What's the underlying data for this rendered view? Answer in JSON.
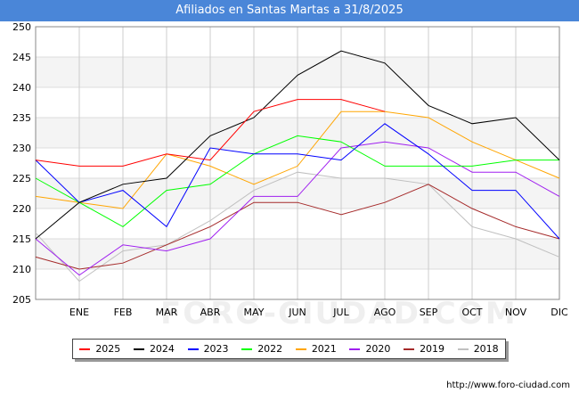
{
  "chart_data": {
    "type": "line",
    "title": "Afiliados en Santas Martas a 31/8/2025",
    "categories": [
      "",
      "ENE",
      "FEB",
      "MAR",
      "ABR",
      "MAY",
      "JUN",
      "JUL",
      "AGO",
      "SEP",
      "OCT",
      "NOV",
      "DIC"
    ],
    "yticks": [
      205,
      210,
      215,
      220,
      225,
      230,
      235,
      240,
      245,
      250
    ],
    "ylim": [
      205,
      250
    ],
    "xlabel": "",
    "ylabel": "",
    "grid": true,
    "legend_position": "bottom",
    "series": [
      {
        "name": "2025",
        "color": "#ff0000",
        "values": [
          228,
          227,
          227,
          229,
          228,
          236,
          238,
          238,
          236,
          null,
          null,
          null,
          null
        ]
      },
      {
        "name": "2024",
        "color": "#000000",
        "values": [
          215,
          221,
          224,
          225,
          232,
          235,
          242,
          246,
          244,
          237,
          234,
          235,
          228
        ]
      },
      {
        "name": "2023",
        "color": "#0000ff",
        "values": [
          228,
          221,
          223,
          217,
          230,
          229,
          229,
          228,
          234,
          229,
          223,
          223,
          215
        ]
      },
      {
        "name": "2022",
        "color": "#00ff00",
        "values": [
          225,
          221,
          217,
          223,
          224,
          229,
          232,
          231,
          227,
          227,
          227,
          228,
          228
        ]
      },
      {
        "name": "2021",
        "color": "#ffa500",
        "values": [
          222,
          221,
          220,
          229,
          227,
          224,
          227,
          236,
          236,
          235,
          231,
          228,
          225
        ]
      },
      {
        "name": "2020",
        "color": "#a020f0",
        "values": [
          215,
          209,
          214,
          213,
          215,
          222,
          222,
          230,
          231,
          230,
          226,
          226,
          222
        ]
      },
      {
        "name": "2019",
        "color": "#a52a2a",
        "values": [
          212,
          210,
          211,
          214,
          217,
          221,
          221,
          219,
          221,
          224,
          220,
          217,
          215
        ]
      },
      {
        "name": "2018",
        "color": "#c0c0c0",
        "values": [
          216,
          208,
          213,
          214,
          218,
          223,
          226,
          225,
          225,
          224,
          217,
          215,
          212
        ]
      }
    ]
  },
  "source": "http://www.foro-ciudad.com",
  "watermark": "FORO-CIUDAD.COM"
}
